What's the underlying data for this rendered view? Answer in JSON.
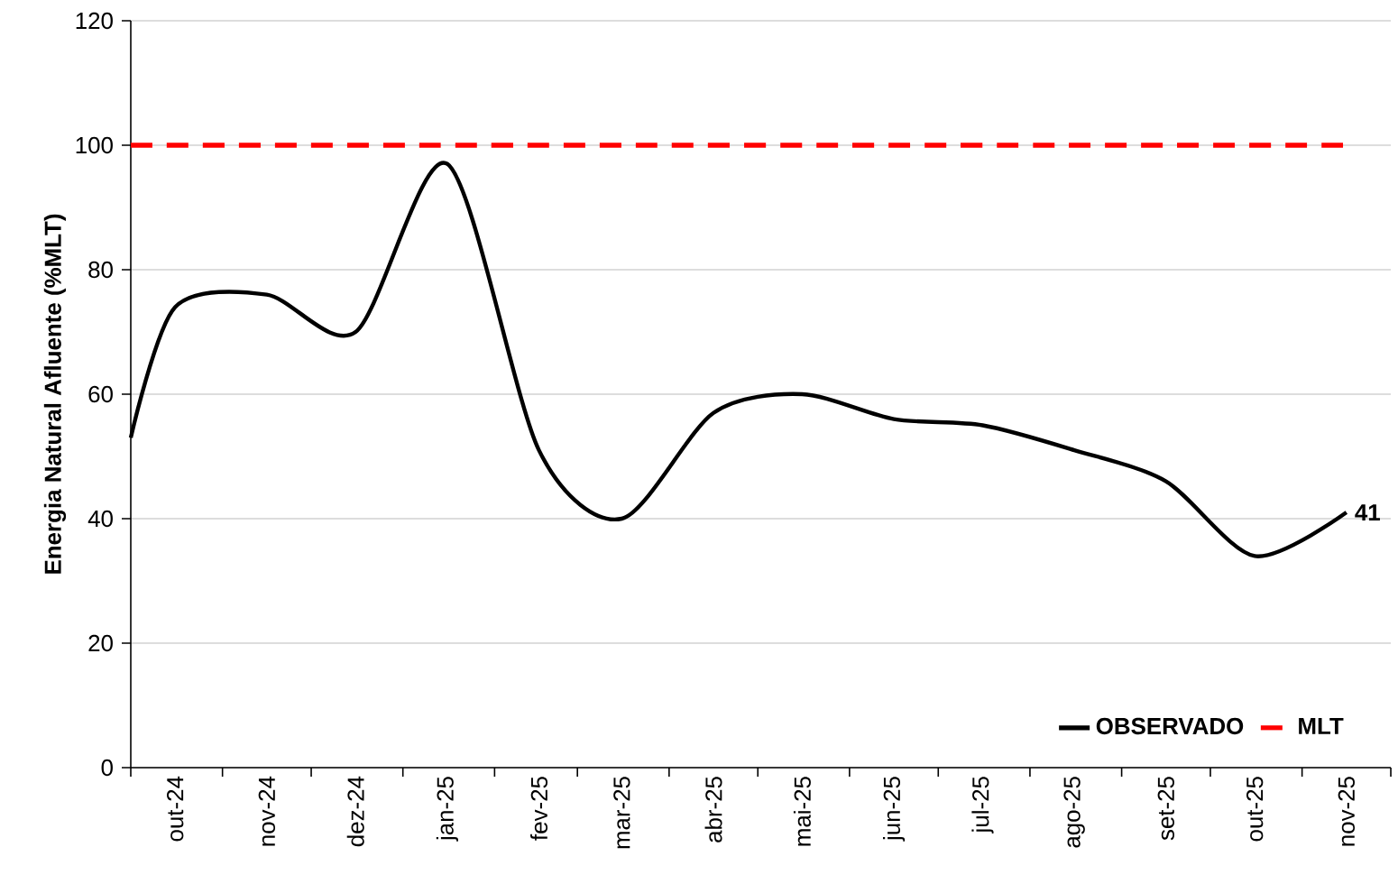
{
  "chart_data": {
    "type": "line",
    "ylabel": "Energia Natural Afluente (%MLT)",
    "xlim": [
      "2024-10-01",
      "2025-12-01"
    ],
    "xticks": [
      {
        "value": "2024-10-01",
        "label": null
      },
      {
        "value": "2024-11-01",
        "label": null
      },
      {
        "value": "2024-12-01",
        "label": null
      },
      {
        "value": "2025-01-01",
        "label": null
      },
      {
        "value": "2025-02-01",
        "label": null
      },
      {
        "value": "2025-03-01",
        "label": null
      },
      {
        "value": "2025-04-01",
        "label": null
      },
      {
        "value": "2025-05-01",
        "label": null
      },
      {
        "value": "2025-06-01",
        "label": null
      },
      {
        "value": "2025-07-01",
        "label": null
      },
      {
        "value": "2025-08-01",
        "label": null
      },
      {
        "value": "2025-09-01",
        "label": null
      },
      {
        "value": "2025-10-01",
        "label": null
      },
      {
        "value": "2025-11-01",
        "label": null
      },
      {
        "value": "2025-12-01",
        "label": null
      },
      {
        "value": "2024-10-16",
        "label": "out-24"
      },
      {
        "value": "2024-11-16",
        "label": "nov-24"
      },
      {
        "value": "2024-12-16",
        "label": "dez-24"
      },
      {
        "value": "2025-01-16",
        "label": "jan-25"
      },
      {
        "value": "2025-02-16",
        "label": "fev-25"
      },
      {
        "value": "2025-03-16",
        "label": "mar-25"
      },
      {
        "value": "2025-04-16",
        "label": "abr-25"
      },
      {
        "value": "2025-05-16",
        "label": "mai-25"
      },
      {
        "value": "2025-06-16",
        "label": "jun-25"
      },
      {
        "value": "2025-07-16",
        "label": "jul-25"
      },
      {
        "value": "2025-08-16",
        "label": "ago-25"
      },
      {
        "value": "2025-09-16",
        "label": "set-25"
      },
      {
        "value": "2025-10-16",
        "label": "out-25"
      },
      {
        "value": "2025-11-16",
        "label": "nov-25"
      }
    ],
    "ylim": [
      0,
      120
    ],
    "yticks": [
      0,
      20,
      40,
      60,
      80,
      100,
      120
    ],
    "grid": "y",
    "legend": "bottom right",
    "series": [
      {
        "name": "OBSERVADO",
        "color": "#000000",
        "line_style": "solid",
        "x": [
          "2024-10-01",
          "2024-10-16",
          "2024-11-16",
          "2024-12-16",
          "2025-01-16",
          "2025-02-16",
          "2025-03-16",
          "2025-04-16",
          "2025-05-16",
          "2025-06-16",
          "2025-07-16",
          "2025-08-16",
          "2025-09-16",
          "2025-10-16",
          "2025-11-16"
        ],
        "values": [
          53,
          74,
          76,
          70,
          97,
          51,
          40,
          57,
          60,
          56,
          55,
          51,
          46,
          34,
          41
        ],
        "value_labels": [
          null,
          null,
          null,
          null,
          null,
          null,
          null,
          null,
          null,
          null,
          null,
          null,
          null,
          null,
          "41"
        ]
      },
      {
        "name": "MLT",
        "color": "#ff0000",
        "line_style": "dashed",
        "x": [
          "2024-10-01",
          "2025-11-16"
        ],
        "values": [
          100,
          100
        ]
      }
    ]
  }
}
